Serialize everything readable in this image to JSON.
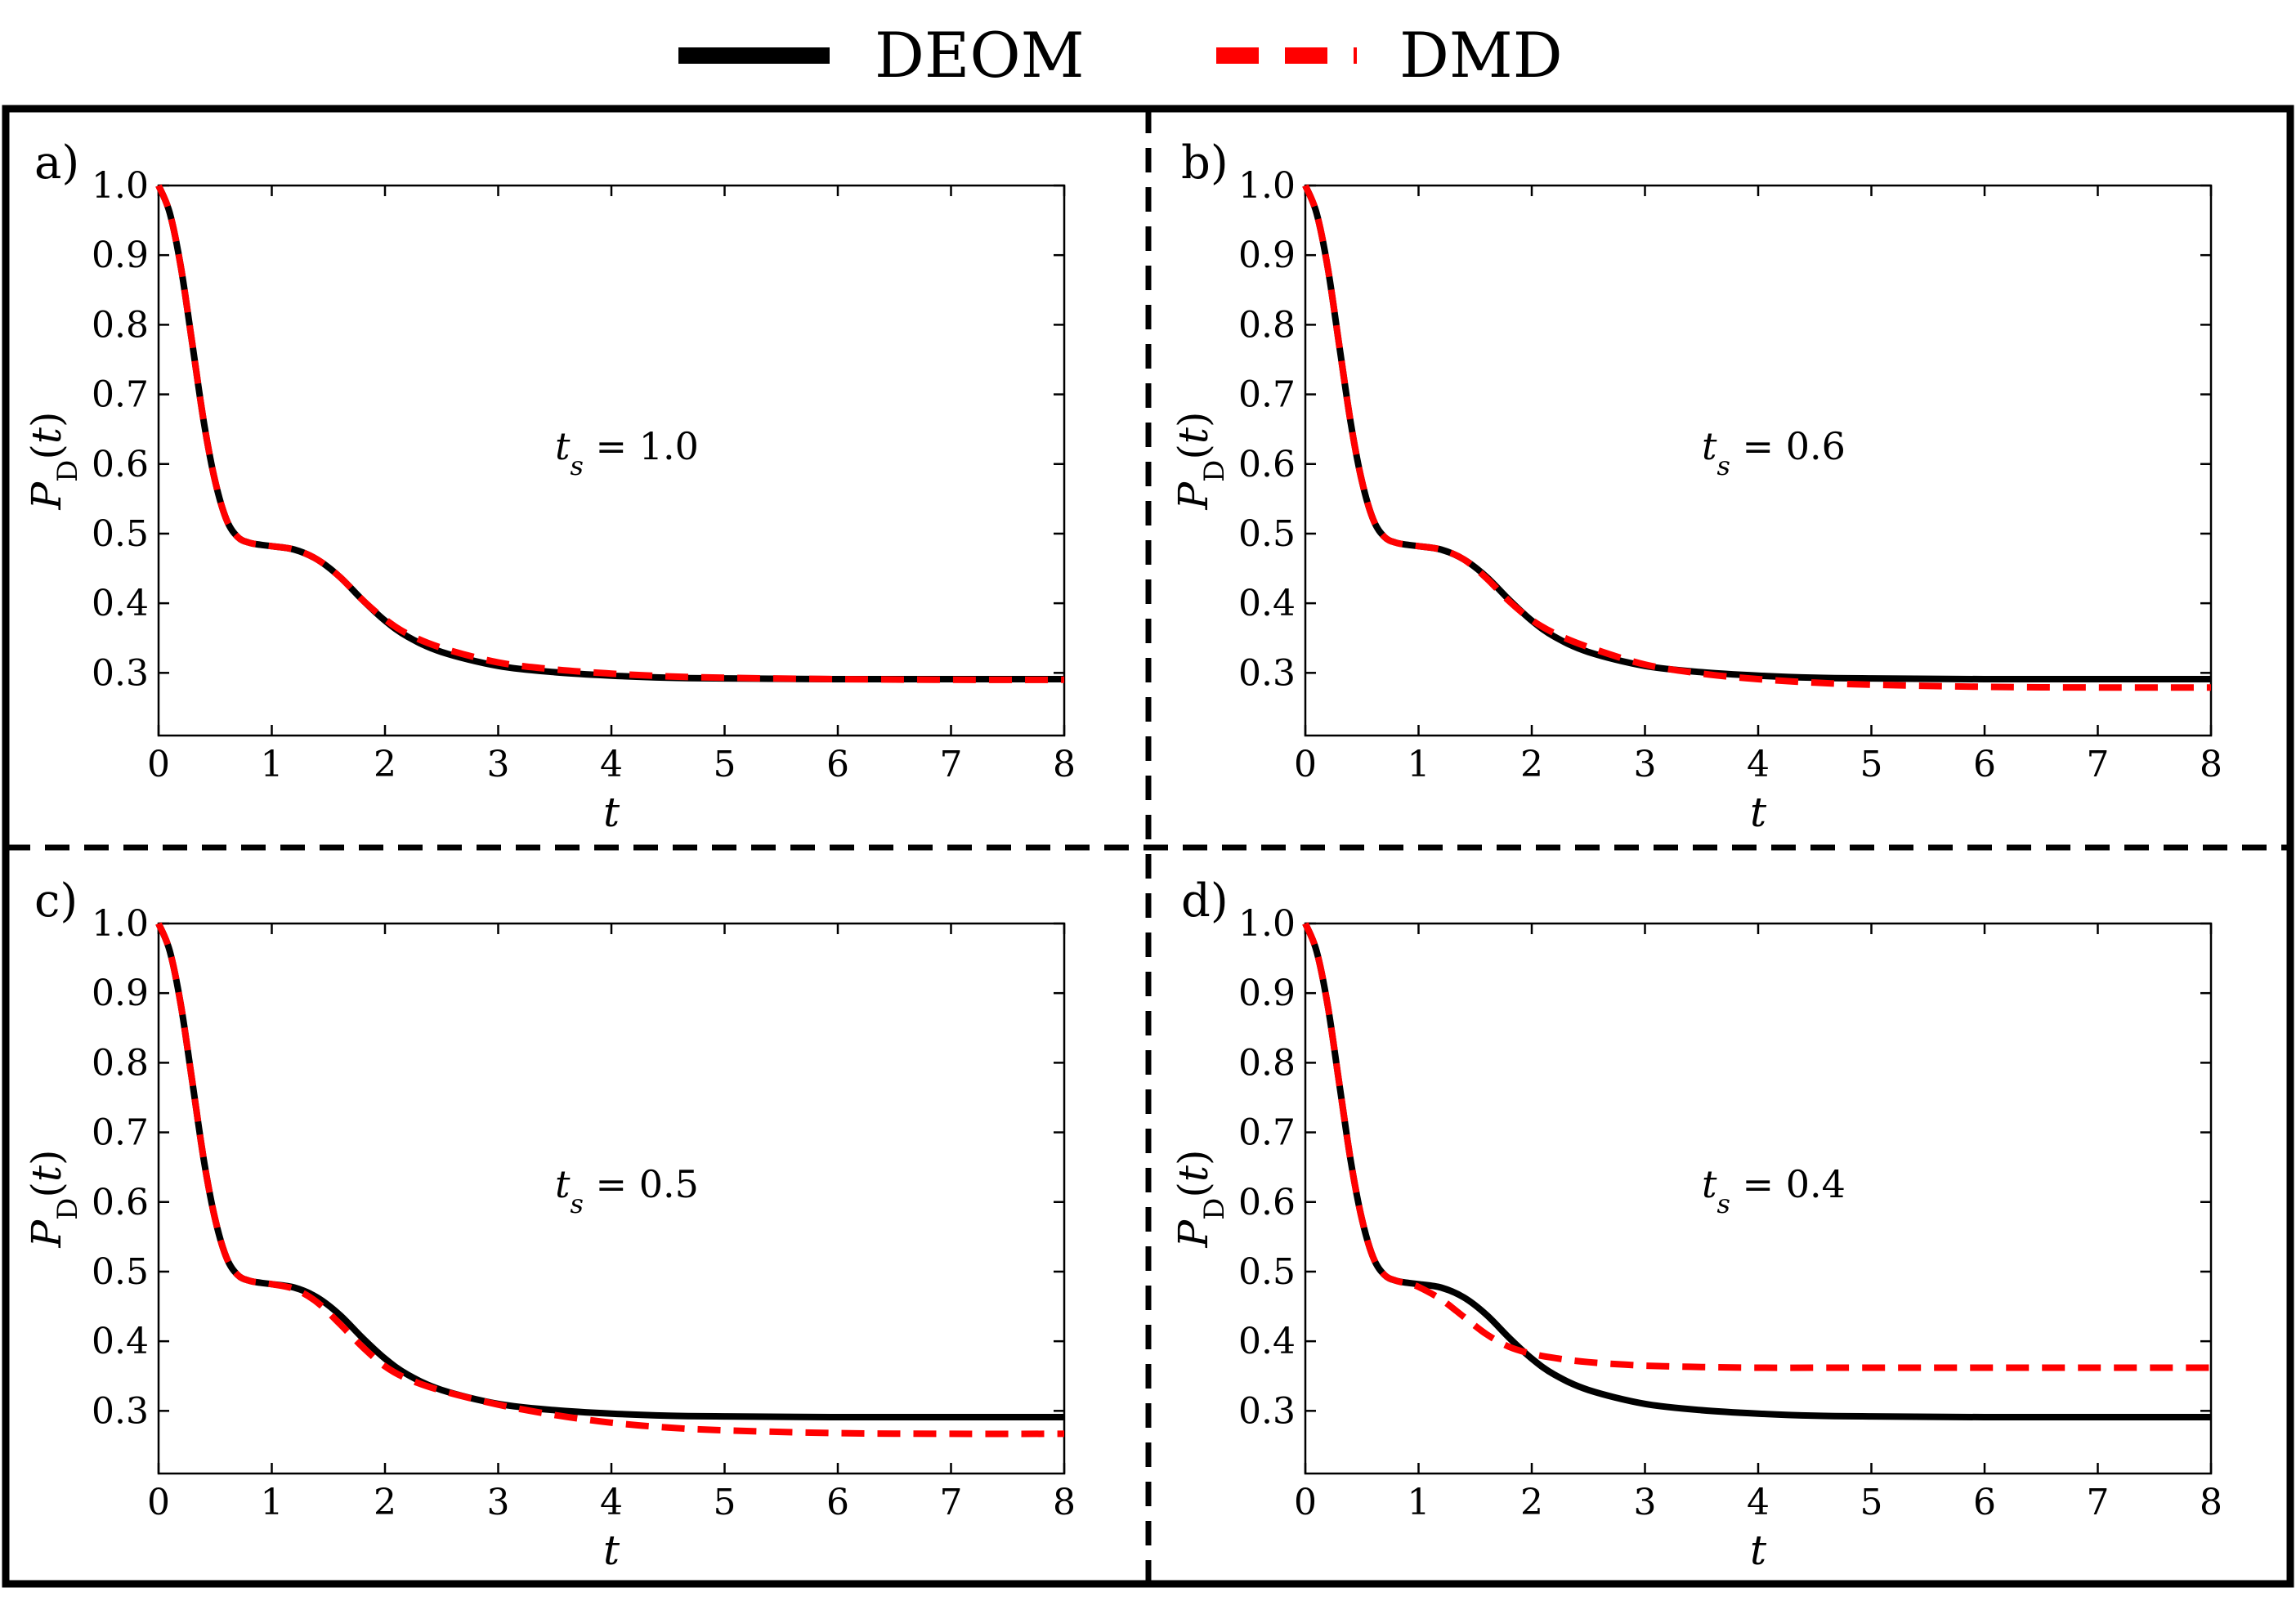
{
  "legend": [
    {
      "label": "DEOM",
      "color": "#000000",
      "style": "solid"
    },
    {
      "label": "DMD",
      "color": "#ff0000",
      "style": "dashed"
    }
  ],
  "chart_data": [
    {
      "type": "line",
      "panel_label": "a)",
      "annotation": "t_s = 1.0",
      "annotation_parts": {
        "var": "t",
        "sub": "s",
        "rest": " = 1.0"
      },
      "xlabel": "t",
      "ylabel": "P_D(t)",
      "ylabel_parts": {
        "main": "P",
        "sub": "D",
        "rest": "(t)"
      },
      "xlim": [
        0,
        8
      ],
      "ylim": [
        0.21,
        1.0
      ],
      "xticks": [
        "0",
        "1",
        "2",
        "3",
        "4",
        "5",
        "6",
        "7",
        "8"
      ],
      "yticks": [
        "0.3",
        "0.4",
        "0.5",
        "0.6",
        "0.7",
        "0.8",
        "0.9",
        "1.0"
      ],
      "x": [
        0,
        0.1,
        0.2,
        0.3,
        0.4,
        0.5,
        0.6,
        0.7,
        0.8,
        0.9,
        1.0,
        1.2,
        1.4,
        1.6,
        1.8,
        2.0,
        2.2,
        2.5,
        3.0,
        3.5,
        4.0,
        4.5,
        5.0,
        6.0,
        7.0,
        8.0
      ],
      "series": [
        {
          "name": "DEOM",
          "values": [
            1.0,
            0.96,
            0.88,
            0.77,
            0.66,
            0.575,
            0.52,
            0.495,
            0.487,
            0.484,
            0.482,
            0.477,
            0.463,
            0.438,
            0.405,
            0.375,
            0.352,
            0.33,
            0.31,
            0.301,
            0.296,
            0.293,
            0.292,
            0.291,
            0.291,
            0.291
          ]
        },
        {
          "name": "DMD",
          "values": [
            1.0,
            0.96,
            0.88,
            0.77,
            0.66,
            0.575,
            0.52,
            0.495,
            0.487,
            0.484,
            0.482,
            0.477,
            0.463,
            0.438,
            0.405,
            0.377,
            0.356,
            0.336,
            0.315,
            0.305,
            0.299,
            0.295,
            0.293,
            0.291,
            0.29,
            0.29
          ]
        }
      ]
    },
    {
      "type": "line",
      "panel_label": "b)",
      "annotation": "t_s = 0.6",
      "annotation_parts": {
        "var": "t",
        "sub": "s",
        "rest": " = 0.6"
      },
      "xlabel": "t",
      "ylabel": "P_D(t)",
      "ylabel_parts": {
        "main": "P",
        "sub": "D",
        "rest": "(t)"
      },
      "xlim": [
        0,
        8
      ],
      "ylim": [
        0.21,
        1.0
      ],
      "xticks": [
        "0",
        "1",
        "2",
        "3",
        "4",
        "5",
        "6",
        "7",
        "8"
      ],
      "yticks": [
        "0.3",
        "0.4",
        "0.5",
        "0.6",
        "0.7",
        "0.8",
        "0.9",
        "1.0"
      ],
      "x": [
        0,
        0.1,
        0.2,
        0.3,
        0.4,
        0.5,
        0.6,
        0.7,
        0.8,
        0.9,
        1.0,
        1.2,
        1.4,
        1.6,
        1.8,
        2.0,
        2.2,
        2.5,
        3.0,
        3.5,
        4.0,
        4.5,
        5.0,
        6.0,
        7.0,
        8.0
      ],
      "series": [
        {
          "name": "DEOM",
          "values": [
            1.0,
            0.96,
            0.88,
            0.77,
            0.66,
            0.575,
            0.52,
            0.495,
            0.487,
            0.484,
            0.482,
            0.477,
            0.463,
            0.438,
            0.405,
            0.375,
            0.352,
            0.33,
            0.31,
            0.301,
            0.296,
            0.293,
            0.292,
            0.291,
            0.291,
            0.291
          ]
        },
        {
          "name": "DMD",
          "values": [
            1.0,
            0.96,
            0.88,
            0.77,
            0.66,
            0.575,
            0.52,
            0.495,
            0.487,
            0.484,
            0.482,
            0.477,
            0.463,
            0.436,
            0.403,
            0.376,
            0.357,
            0.337,
            0.312,
            0.299,
            0.291,
            0.286,
            0.283,
            0.28,
            0.279,
            0.279
          ]
        }
      ]
    },
    {
      "type": "line",
      "panel_label": "c)",
      "annotation": "t_s = 0.5",
      "annotation_parts": {
        "var": "t",
        "sub": "s",
        "rest": " = 0.5"
      },
      "xlabel": "t",
      "ylabel": "P_D(t)",
      "ylabel_parts": {
        "main": "P",
        "sub": "D",
        "rest": "(t)"
      },
      "xlim": [
        0,
        8
      ],
      "ylim": [
        0.21,
        1.0
      ],
      "xticks": [
        "0",
        "1",
        "2",
        "3",
        "4",
        "5",
        "6",
        "7",
        "8"
      ],
      "yticks": [
        "0.3",
        "0.4",
        "0.5",
        "0.6",
        "0.7",
        "0.8",
        "0.9",
        "1.0"
      ],
      "x": [
        0,
        0.1,
        0.2,
        0.3,
        0.4,
        0.5,
        0.6,
        0.7,
        0.8,
        0.9,
        1.0,
        1.2,
        1.4,
        1.6,
        1.8,
        2.0,
        2.2,
        2.5,
        3.0,
        3.5,
        4.0,
        4.5,
        5.0,
        6.0,
        7.0,
        8.0
      ],
      "series": [
        {
          "name": "DEOM",
          "values": [
            1.0,
            0.96,
            0.88,
            0.77,
            0.66,
            0.575,
            0.52,
            0.495,
            0.487,
            0.484,
            0.482,
            0.477,
            0.463,
            0.438,
            0.405,
            0.375,
            0.352,
            0.33,
            0.31,
            0.301,
            0.296,
            0.293,
            0.292,
            0.291,
            0.291,
            0.291
          ]
        },
        {
          "name": "DMD",
          "values": [
            1.0,
            0.96,
            0.88,
            0.77,
            0.66,
            0.575,
            0.52,
            0.495,
            0.487,
            0.484,
            0.482,
            0.475,
            0.456,
            0.425,
            0.392,
            0.364,
            0.346,
            0.329,
            0.309,
            0.294,
            0.283,
            0.276,
            0.272,
            0.268,
            0.267,
            0.267
          ]
        }
      ]
    },
    {
      "type": "line",
      "panel_label": "d)",
      "annotation": "t_s = 0.4",
      "annotation_parts": {
        "var": "t",
        "sub": "s",
        "rest": " = 0.4"
      },
      "xlabel": "t",
      "ylabel": "P_D(t)",
      "ylabel_parts": {
        "main": "P",
        "sub": "D",
        "rest": "(t)"
      },
      "xlim": [
        0,
        8
      ],
      "ylim": [
        0.21,
        1.0
      ],
      "xticks": [
        "0",
        "1",
        "2",
        "3",
        "4",
        "5",
        "6",
        "7",
        "8"
      ],
      "yticks": [
        "0.3",
        "0.4",
        "0.5",
        "0.6",
        "0.7",
        "0.8",
        "0.9",
        "1.0"
      ],
      "x": [
        0,
        0.1,
        0.2,
        0.3,
        0.4,
        0.5,
        0.6,
        0.7,
        0.8,
        0.9,
        1.0,
        1.2,
        1.4,
        1.6,
        1.8,
        2.0,
        2.2,
        2.5,
        3.0,
        3.5,
        4.0,
        4.5,
        5.0,
        6.0,
        7.0,
        8.0
      ],
      "series": [
        {
          "name": "DEOM",
          "values": [
            1.0,
            0.96,
            0.88,
            0.77,
            0.66,
            0.575,
            0.52,
            0.495,
            0.487,
            0.484,
            0.482,
            0.477,
            0.463,
            0.438,
            0.405,
            0.375,
            0.352,
            0.33,
            0.31,
            0.301,
            0.296,
            0.293,
            0.292,
            0.291,
            0.291,
            0.291
          ]
        },
        {
          "name": "DMD",
          "values": [
            1.0,
            0.96,
            0.88,
            0.77,
            0.66,
            0.575,
            0.52,
            0.495,
            0.487,
            0.483,
            0.478,
            0.46,
            0.435,
            0.41,
            0.392,
            0.382,
            0.376,
            0.37,
            0.365,
            0.363,
            0.362,
            0.362,
            0.362,
            0.362,
            0.362,
            0.362
          ]
        }
      ]
    }
  ]
}
